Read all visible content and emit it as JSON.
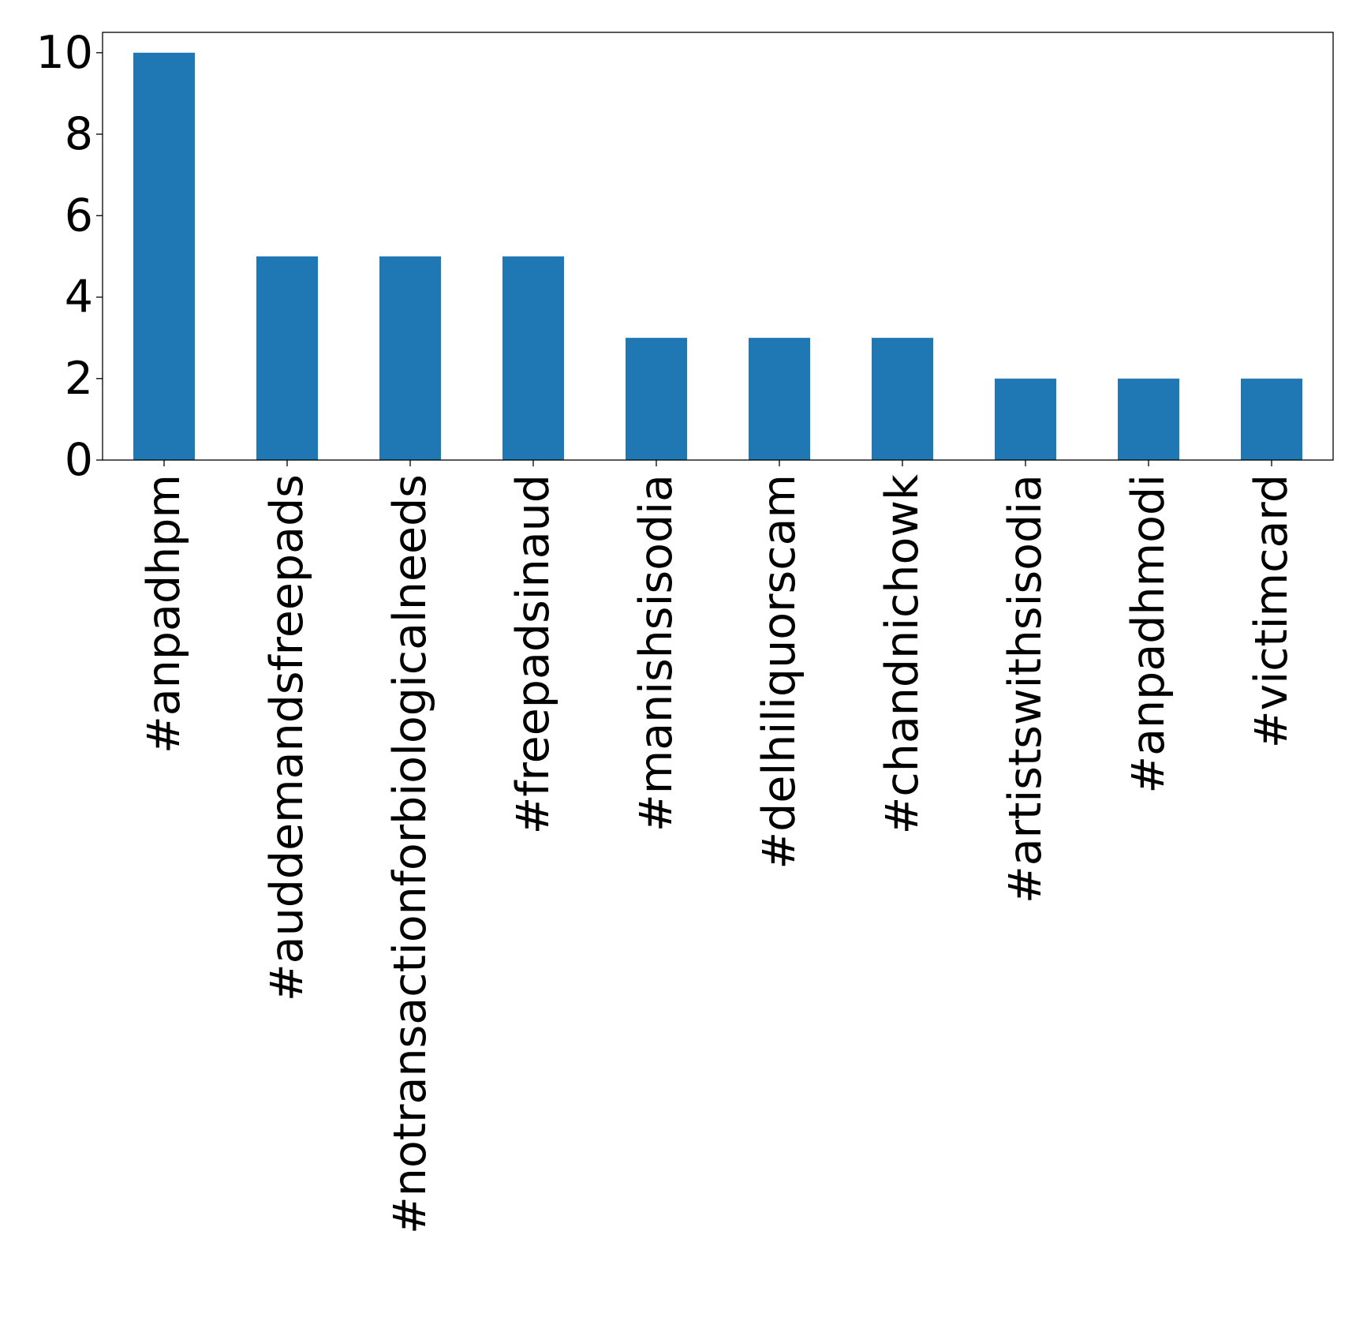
{
  "chart_data": {
    "type": "bar",
    "title": "",
    "xlabel": "",
    "ylabel": "",
    "categories": [
      "#anpadhpm",
      "#auddemandsfreepads",
      "#notransactionforbiologicalneeds",
      "#freepadsinaud",
      "#manishsisodia",
      "#delhiliquorscam",
      "#chandnichowk",
      "#artistswithsisodia",
      "#anpadhmodi",
      "#victimcard"
    ],
    "values": [
      10,
      5,
      5,
      5,
      3,
      3,
      3,
      2,
      2,
      2
    ],
    "ylim": [
      0,
      10.5
    ],
    "yticks": [
      0,
      2,
      4,
      6,
      8,
      10
    ],
    "grid": false,
    "legend": "none",
    "bar_color": "#1f77b4"
  }
}
